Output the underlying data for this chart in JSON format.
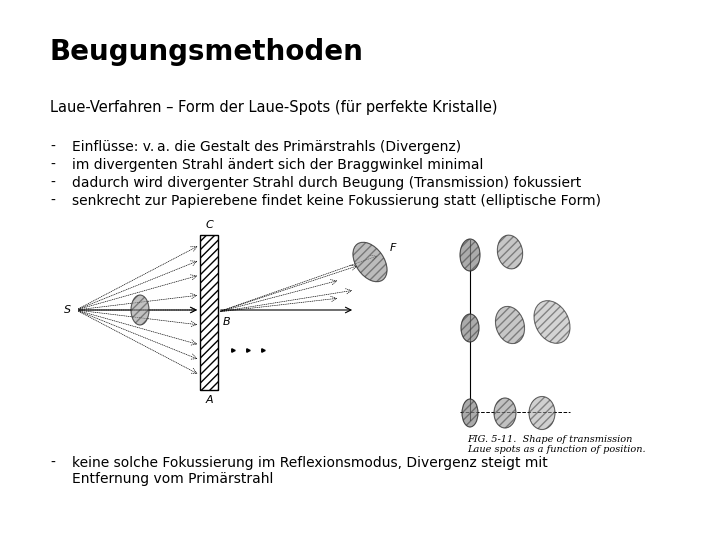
{
  "title": "Beugungsmethoden",
  "subtitle": "Laue-Verfahren – Form der Laue-Spots (für perfekte Kristalle)",
  "bullets": [
    "Einflüsse: v. a. die Gestalt des Primärstrahls (Divergenz)",
    "im divergenten Strahl ändert sich der Braggwinkel minimal",
    "dadurch wird divergenter Strahl durch Beugung (Transmission) fokussiert",
    "senkrecht zur Papierebene findet keine Fokussierung statt (elliptische Form)"
  ],
  "bullet_last_line1": "keine solche Fokussierung im Reflexionsmodus, Divergenz steigt mit",
  "bullet_last_line2": "Entfernung vom Primärstrahl",
  "fig_caption_line1": "FIG. 5-11.  Shape of transmission",
  "fig_caption_line2": "Laue spots as a function of position.",
  "bg_color": "#ffffff",
  "text_color": "#000000",
  "title_fontsize": 20,
  "subtitle_fontsize": 10.5,
  "bullet_fontsize": 10,
  "caption_fontsize": 7
}
